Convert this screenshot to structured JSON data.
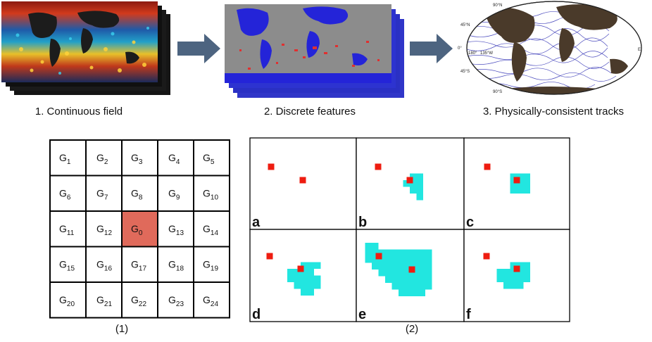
{
  "top_row": {
    "steps": [
      {
        "label": "1. Continuous field"
      },
      {
        "label": "2. Discrete features"
      },
      {
        "label": "3. Physically-consistent tracks"
      }
    ],
    "arrow_color": "#4d6480",
    "map3_labels": [
      "90°N",
      "45°N",
      "0°",
      "45°S",
      "90°S",
      "180°",
      "135°W",
      "E"
    ]
  },
  "grid_figure": {
    "caption": "(1)",
    "center_cell": "G0",
    "center_color": "#e06a5b",
    "rows": [
      [
        {
          "t": "G",
          "s": "1"
        },
        {
          "t": "G",
          "s": "2"
        },
        {
          "t": "G",
          "s": "3"
        },
        {
          "t": "G",
          "s": "4"
        },
        {
          "t": "G",
          "s": "5"
        }
      ],
      [
        {
          "t": "G",
          "s": "6"
        },
        {
          "t": "G",
          "s": "7"
        },
        {
          "t": "G",
          "s": "8"
        },
        {
          "t": "G",
          "s": "9"
        },
        {
          "t": "G",
          "s": "10"
        }
      ],
      [
        {
          "t": "G",
          "s": "11"
        },
        {
          "t": "G",
          "s": "12"
        },
        {
          "t": "G",
          "s": "0"
        },
        {
          "t": "G",
          "s": "13"
        },
        {
          "t": "G",
          "s": "14"
        }
      ],
      [
        {
          "t": "G",
          "s": "15"
        },
        {
          "t": "G",
          "s": "16"
        },
        {
          "t": "G",
          "s": "17"
        },
        {
          "t": "G",
          "s": "18"
        },
        {
          "t": "G",
          "s": "19"
        }
      ],
      [
        {
          "t": "G",
          "s": "20"
        },
        {
          "t": "G",
          "s": "21"
        },
        {
          "t": "G",
          "s": "22"
        },
        {
          "t": "G",
          "s": "23"
        },
        {
          "t": "G",
          "s": "24"
        }
      ]
    ]
  },
  "panels_figure": {
    "caption": "(2)",
    "colors": {
      "seed": "#ee1c10",
      "region": "#22e6e0"
    },
    "panels": [
      {
        "letter": "a"
      },
      {
        "letter": "b"
      },
      {
        "letter": "c"
      },
      {
        "letter": "d"
      },
      {
        "letter": "e"
      },
      {
        "letter": "f"
      }
    ]
  }
}
